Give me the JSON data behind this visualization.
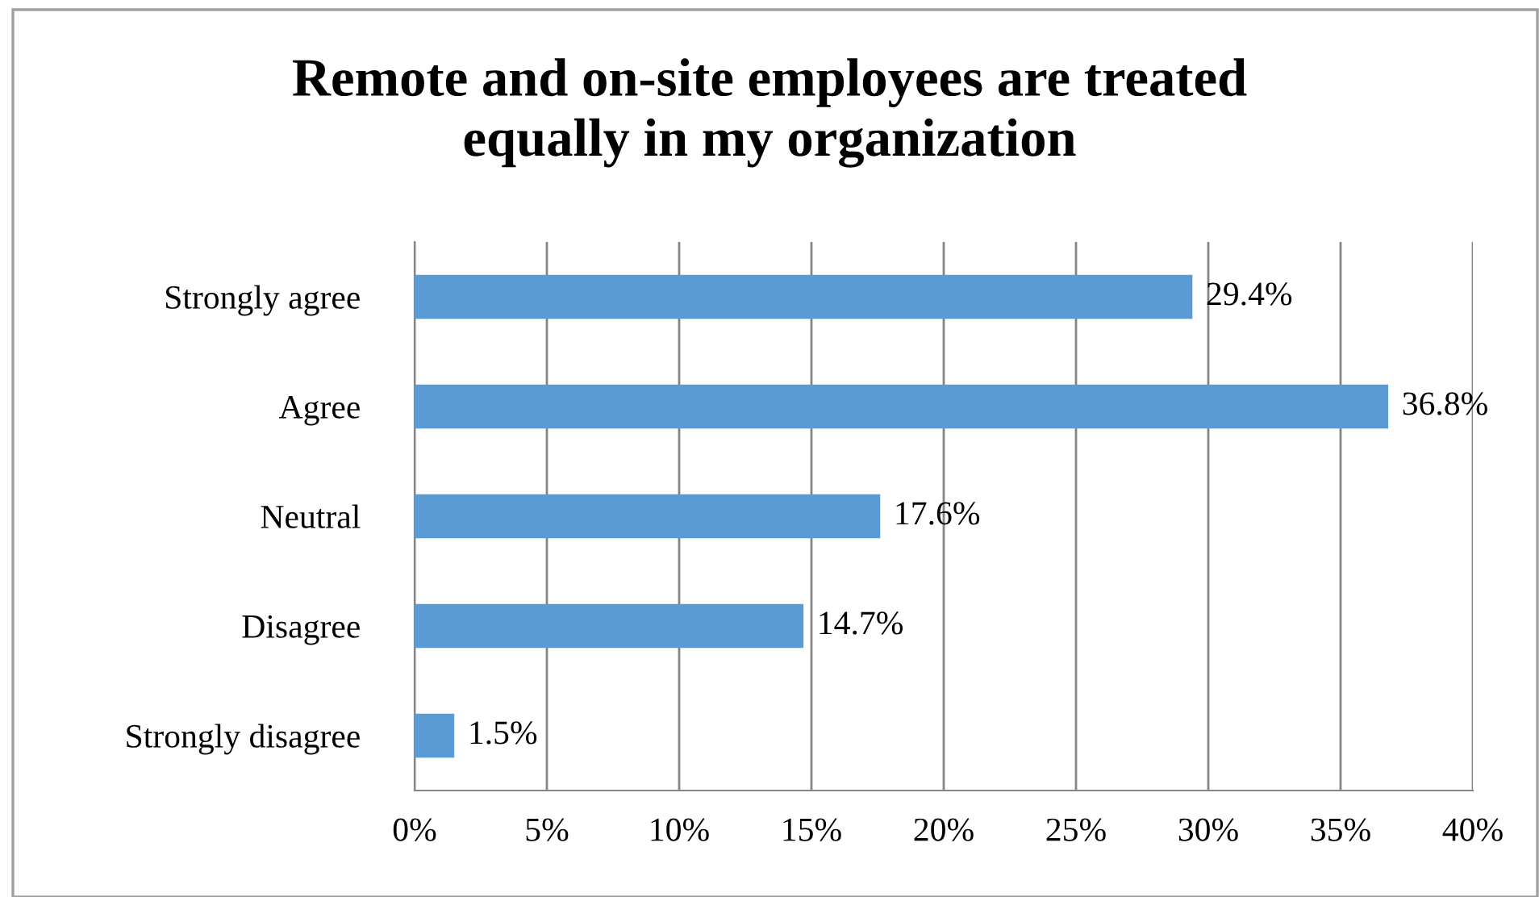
{
  "chart_data": {
    "type": "bar",
    "orientation": "horizontal",
    "title": "Remote and on-site employees are treated\nequally in my organization",
    "categories": [
      "Strongly agree",
      "Agree",
      "Neutral",
      "Disagree",
      "Strongly disagree"
    ],
    "values": [
      29.4,
      36.8,
      17.6,
      14.7,
      1.5
    ],
    "color": "#5b9bd5",
    "value_labels": [
      "29.4%",
      "36.8%",
      "17.6%",
      "14.7%",
      "1.5%"
    ],
    "xlim": [
      0,
      40
    ],
    "xticks": [
      {
        "value": 0,
        "label": "0%"
      },
      {
        "value": 5,
        "label": "5%"
      },
      {
        "value": 10,
        "label": "10%"
      },
      {
        "value": 15,
        "label": "15%"
      },
      {
        "value": 20,
        "label": "20%"
      },
      {
        "value": 25,
        "label": "25%"
      },
      {
        "value": 30,
        "label": "30%"
      },
      {
        "value": 35,
        "label": "35%"
      },
      {
        "value": 40,
        "label": "40%"
      }
    ],
    "grid": "x",
    "legend": false
  }
}
